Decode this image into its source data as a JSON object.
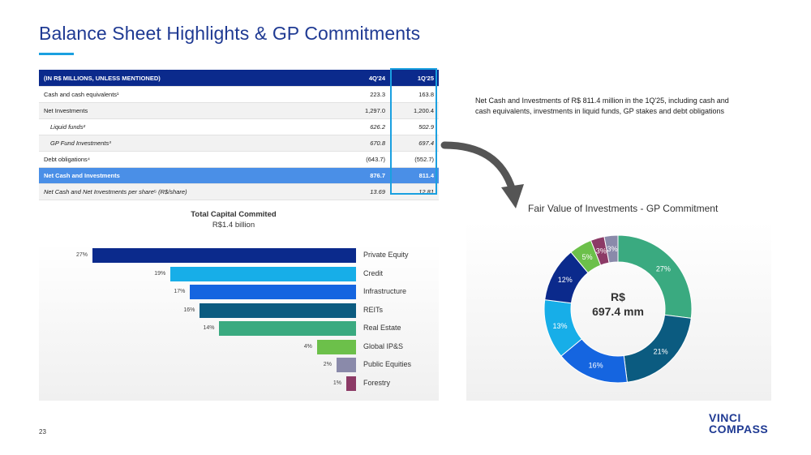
{
  "header": {
    "title": "Balance Sheet Highlights & GP Commitments"
  },
  "table": {
    "columns": [
      "(IN R$ MILLIONS, UNLESS MENTIONED)",
      "4Q'24",
      "1Q'25"
    ],
    "rows": [
      {
        "label": "Cash and cash equivalents¹",
        "q4": "223.3",
        "q1": "163.8"
      },
      {
        "label": "Net Investments",
        "q4": "1,297.0",
        "q1": "1,200.4"
      },
      {
        "label": "Liquid funds²",
        "q4": "626.2",
        "q1": "502.9"
      },
      {
        "label": "GP Fund Investments³",
        "q4": "670.8",
        "q1": "697.4"
      },
      {
        "label": "Debt obligations⁴",
        "q4": "(643.7)",
        "q1": "(552.7)"
      },
      {
        "label": "Net Cash and Investments",
        "q4": "876.7",
        "q1": "811.4"
      },
      {
        "label": "Net Cash and Net Investments per share⁵ (R$/share)",
        "q4": "13.69",
        "q1": "12.81"
      }
    ]
  },
  "note": {
    "text": "Net Cash and Investments of R$ 811.4 million in the 1Q'25, including cash and cash equivalents, investments in liquid funds, GP stakes and debt obligations"
  },
  "chart_data": [
    {
      "type": "bar",
      "title": "Total Capital Commited",
      "subtitle": "R$1.4 billion",
      "categories": [
        "Private Equity",
        "Credit",
        "Infrastructure",
        "REITs",
        "Real Estate",
        "Global IP&S",
        "Public Equities",
        "Forestry"
      ],
      "values": [
        27,
        19,
        17,
        16,
        14,
        4,
        2,
        1
      ],
      "value_labels": [
        "27%",
        "19%",
        "17%",
        "16%",
        "14%",
        "4%",
        "2%",
        "1%"
      ],
      "colors": [
        "#0b2a8c",
        "#17aee8",
        "#1565e0",
        "#0b5b80",
        "#3aaa80",
        "#6cc04a",
        "#8a8aaa",
        "#8c3a66"
      ]
    },
    {
      "type": "pie",
      "title": "Fair Value of Investments - GP Commitment",
      "center_label_1": "R$",
      "center_label_2": "697.4 mm",
      "values": [
        27,
        21,
        16,
        13,
        12,
        5,
        3,
        3
      ],
      "value_labels": [
        "27%",
        "21%",
        "16%",
        "13%",
        "12%",
        "5%",
        "3%",
        "3%"
      ],
      "colors": [
        "#3aaa80",
        "#0b5b80",
        "#1565e0",
        "#17aee8",
        "#0b2a8c",
        "#6cc04a",
        "#8c3a66",
        "#8a8aaa"
      ]
    }
  ],
  "footer": {
    "page_number": "23",
    "logo_line1": "VINCI",
    "logo_line2": "COMPASS"
  }
}
